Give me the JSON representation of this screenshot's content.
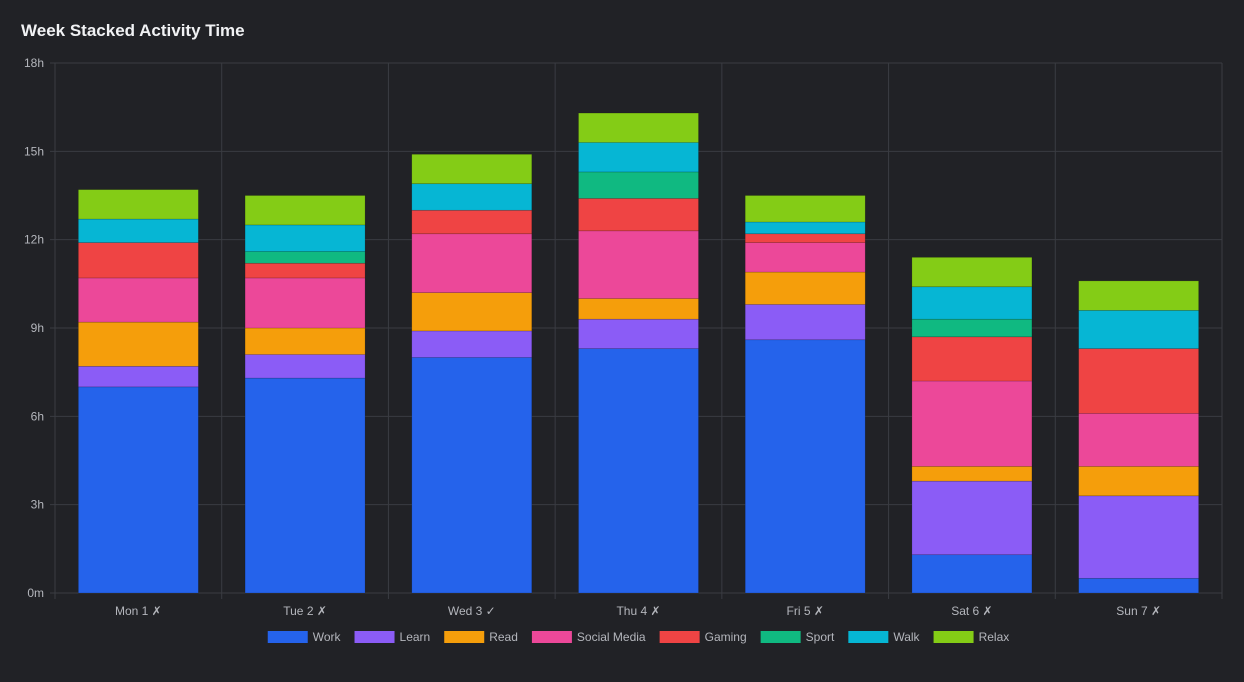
{
  "chart_data": {
    "type": "bar",
    "stacked": true,
    "title": "Week Stacked Activity Time",
    "categories": [
      "Mon 1 ✗",
      "Tue 2 ✗",
      "Wed 3 ✓",
      "Thu 4 ✗",
      "Fri 5 ✗",
      "Sat 6 ✗",
      "Sun 7 ✗"
    ],
    "ylim": [
      0,
      18
    ],
    "yticks": [
      0,
      3,
      6,
      9,
      12,
      15,
      18
    ],
    "ytick_labels": [
      "0m",
      "3h",
      "6h",
      "9h",
      "12h",
      "15h",
      "18h"
    ],
    "grid": true,
    "legend_position": "bottom",
    "series": [
      {
        "name": "Work",
        "color": "#2563eb",
        "values": [
          7.0,
          7.3,
          8.0,
          8.3,
          8.6,
          1.3,
          0.5
        ]
      },
      {
        "name": "Learn",
        "color": "#8b5cf6",
        "values": [
          0.7,
          0.8,
          0.9,
          1.0,
          1.2,
          2.5,
          2.8
        ]
      },
      {
        "name": "Read",
        "color": "#f59e0b",
        "values": [
          1.5,
          0.9,
          1.3,
          0.7,
          1.1,
          0.5,
          1.0
        ]
      },
      {
        "name": "Social Media",
        "color": "#ec4899",
        "values": [
          1.5,
          1.7,
          2.0,
          2.3,
          1.0,
          2.9,
          1.8
        ]
      },
      {
        "name": "Gaming",
        "color": "#ef4444",
        "values": [
          1.2,
          0.5,
          0.8,
          1.1,
          0.3,
          1.5,
          2.2
        ]
      },
      {
        "name": "Sport",
        "color": "#10b981",
        "values": [
          0.0,
          0.4,
          0.0,
          0.9,
          0.0,
          0.6,
          0.0
        ]
      },
      {
        "name": "Walk",
        "color": "#06b6d4",
        "values": [
          0.8,
          0.9,
          0.9,
          1.0,
          0.4,
          1.1,
          1.3
        ]
      },
      {
        "name": "Relax",
        "color": "#84cc16",
        "values": [
          1.0,
          1.0,
          1.0,
          1.0,
          0.9,
          1.0,
          1.0
        ]
      }
    ]
  }
}
